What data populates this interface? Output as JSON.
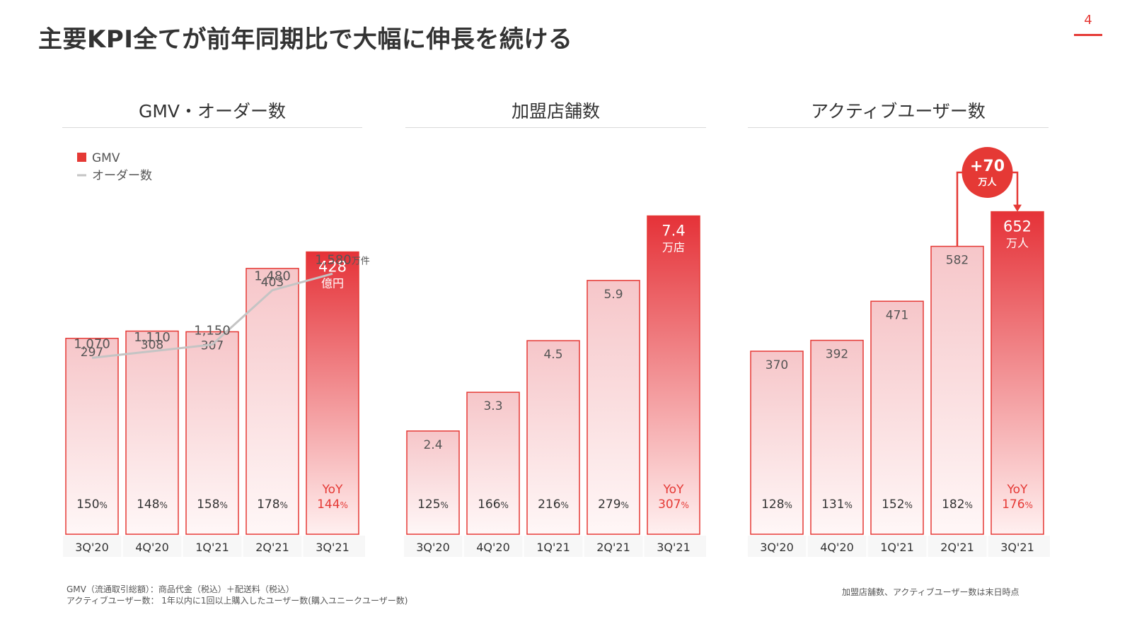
{
  "page": {
    "title": "主要KPI全てが前年同期比で大幅に伸長を続ける",
    "page_number": "4",
    "accent_color": "#e53935"
  },
  "footnotes": {
    "left_line1": "GMV（流通取引総額）：商品代金（税込）＋配送料（税込）",
    "left_line2": "アクティブユーザー数： 1年以内に1回以上購入したユーザー数(購入ユニークユーザー数)",
    "right": "加盟店舗数、アクティブユーザー数は末日時点"
  },
  "chart_data": [
    {
      "type": "bar",
      "title": "GMV・オーダー数",
      "categories": [
        "3Q'20",
        "4Q'20",
        "1Q'21",
        "2Q'21",
        "3Q'21"
      ],
      "series": [
        {
          "name": "GMV",
          "values": [
            297,
            308,
            307,
            403,
            428
          ],
          "labels": [
            "297",
            "308",
            "307",
            "403",
            "428"
          ]
        }
      ],
      "last_value_unit": "億円",
      "yoy": [
        "150",
        "148",
        "158",
        "178",
        "144"
      ],
      "yoy_unit": "%",
      "yoy_prefix": "YoY",
      "ylim": [
        0,
        600
      ],
      "legend": [
        {
          "name": "GMV",
          "marker": "square"
        },
        {
          "name": "オーダー数",
          "marker": "line"
        }
      ],
      "line": {
        "name": "オーダー数",
        "values": [
          1070,
          1110,
          1150,
          1480,
          1580
        ],
        "labels": [
          "1,070",
          "1,110",
          "1,150",
          "1,480",
          "1,580"
        ],
        "last_unit": "万件",
        "ylim": [
          0,
          2400
        ]
      }
    },
    {
      "type": "bar",
      "title": "加盟店舗数",
      "categories": [
        "3Q'20",
        "4Q'20",
        "1Q'21",
        "2Q'21",
        "3Q'21"
      ],
      "series": [
        {
          "values": [
            2.4,
            3.3,
            4.5,
            5.9,
            7.4
          ],
          "labels": [
            "2.4",
            "3.3",
            "4.5",
            "5.9",
            "7.4"
          ]
        }
      ],
      "last_value_unit": "万店",
      "yoy": [
        "125",
        "166",
        "216",
        "279",
        "307"
      ],
      "yoy_unit": "%",
      "yoy_prefix": "YoY",
      "ylim": [
        0,
        9.2
      ]
    },
    {
      "type": "bar",
      "title": "アクティブユーザー数",
      "categories": [
        "3Q'20",
        "4Q'20",
        "1Q'21",
        "2Q'21",
        "3Q'21"
      ],
      "series": [
        {
          "values": [
            370,
            392,
            471,
            582,
            652
          ],
          "labels": [
            "370",
            "392",
            "471",
            "582",
            "652"
          ]
        }
      ],
      "last_value_unit": "万人",
      "yoy": [
        "128",
        "131",
        "152",
        "182",
        "176"
      ],
      "yoy_unit": "%",
      "yoy_prefix": "YoY",
      "ylim": [
        0,
        800
      ],
      "delta_badge": {
        "value": "+70",
        "unit": "万人"
      }
    }
  ]
}
